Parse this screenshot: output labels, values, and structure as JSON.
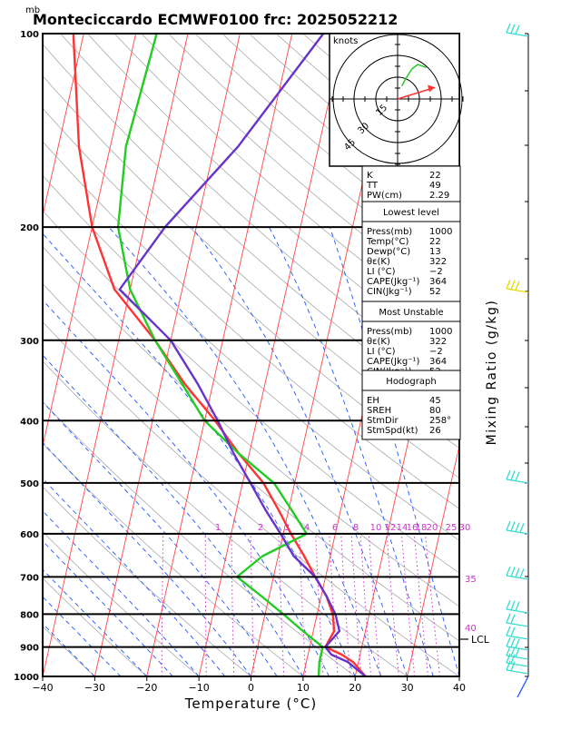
{
  "header": {
    "mb_unit": "mb",
    "title": "Monteciccardo ECMWF0100  frc: 2025052212"
  },
  "axes": {
    "xlabel": "Temperature (°C)",
    "right_label": "Mixing Ratio  (g/kg)",
    "lcl_label": "LCL"
  },
  "hodograph": {
    "unit_label": "knots",
    "ring_labels": [
      "15",
      "30",
      "45"
    ],
    "trace": [
      [
        3,
        9
      ],
      [
        5,
        13
      ],
      [
        10,
        21
      ],
      [
        14,
        24
      ],
      [
        20,
        22
      ]
    ],
    "storm_vector": [
      26,
      8
    ]
  },
  "indices": {
    "top": [
      {
        "label": "K",
        "value": "22"
      },
      {
        "label": "TT",
        "value": "49"
      },
      {
        "label": "PW(cm)",
        "value": "2.29"
      }
    ],
    "lowest": {
      "title": "Lowest level",
      "rows": [
        {
          "label": "Press(mb)",
          "value": "1000"
        },
        {
          "label": "Temp(°C)",
          "value": "22"
        },
        {
          "label": "Dewp(°C)",
          "value": "13"
        },
        {
          "label": "θε(K)",
          "value": "322"
        },
        {
          "label": "LI (°C)",
          "value": "−2"
        },
        {
          "label": "CAPE(Jkg⁻¹)",
          "value": "364"
        },
        {
          "label": "CIN(Jkg⁻¹)",
          "value": "52"
        }
      ]
    },
    "unstable": {
      "title": "Most Unstable",
      "rows": [
        {
          "label": "Press(mb)",
          "value": "1000"
        },
        {
          "label": "θε(K)",
          "value": "322"
        },
        {
          "label": "LI (°C)",
          "value": "−2"
        },
        {
          "label": "CAPE(Jkg⁻¹)",
          "value": "364"
        },
        {
          "label": "CIN(Jkg⁻¹)",
          "value": "52"
        }
      ]
    },
    "hodo": {
      "title": "Hodograph",
      "rows": [
        {
          "label": "EH",
          "value": "45"
        },
        {
          "label": "SREH",
          "value": "80"
        },
        {
          "label": "StmDir",
          "value": "258°"
        },
        {
          "label": "StmSpd(kt)",
          "value": "26"
        }
      ]
    }
  },
  "chart_data": {
    "type": "line",
    "xlabel": "Temperature (°C)",
    "ylabel": "mb",
    "x_ticks": [
      -40,
      -30,
      -20,
      -10,
      0,
      10,
      20,
      30,
      40
    ],
    "xlim": [
      -40,
      40
    ],
    "pressure_levels": [
      100,
      200,
      300,
      400,
      500,
      600,
      700,
      800,
      900,
      1000
    ],
    "ylim": [
      1000,
      100
    ],
    "mixing_ratio_labels": [
      "1",
      "2",
      "3",
      "4",
      "6",
      "8",
      "10",
      "12",
      "14",
      "16",
      "18",
      "20",
      "25",
      "30",
      "35",
      "40"
    ],
    "series": [
      {
        "p": [
          1000,
          950,
          925,
          900,
          850,
          800,
          750,
          700,
          650,
          600,
          550,
          500,
          450,
          400,
          350,
          300,
          250,
          200,
          150,
          100
        ],
        "t": [
          22,
          18,
          14.5,
          13,
          15,
          13.5,
          11,
          8,
          3,
          -0.5,
          -4.5,
          -8.5,
          -13,
          -17.5,
          -23,
          -30,
          -42,
          -36,
          -25.5,
          -14
        ]
      },
      {
        "p": [
          1000,
          950,
          925,
          900,
          850,
          800,
          750,
          700,
          650,
          600,
          550,
          500,
          450,
          400,
          350,
          300,
          250,
          200,
          150,
          100
        ],
        "t": [
          13,
          12.5,
          12.5,
          12.5,
          8,
          3.5,
          -1.5,
          -7,
          -3,
          4.5,
          0.5,
          -4,
          -12,
          -20,
          -26,
          -33,
          -40,
          -45,
          -47,
          -46
        ]
      },
      {
        "p": [
          1000,
          950,
          925,
          900,
          850,
          800,
          750,
          700,
          650,
          600,
          550,
          500,
          450,
          400,
          350,
          300,
          250,
          200,
          150,
          100
        ],
        "t": [
          22,
          19,
          16.5,
          13,
          14,
          13,
          11,
          8,
          5,
          1.5,
          -2,
          -6,
          -12,
          -18,
          -25.5,
          -33,
          -43,
          -50,
          -56,
          -62
        ]
      }
    ]
  },
  "colors": {
    "temperature": "#ff3333",
    "dewpoint": "#22cc22",
    "parcel": "#6633cc",
    "isotherm": "#ff4444",
    "dry_adiabat": "#aaaaaa",
    "moist_adiabat": "#2255ff",
    "mixing_ratio": "#cc33cc",
    "wind_barb": "#33ddcc"
  }
}
